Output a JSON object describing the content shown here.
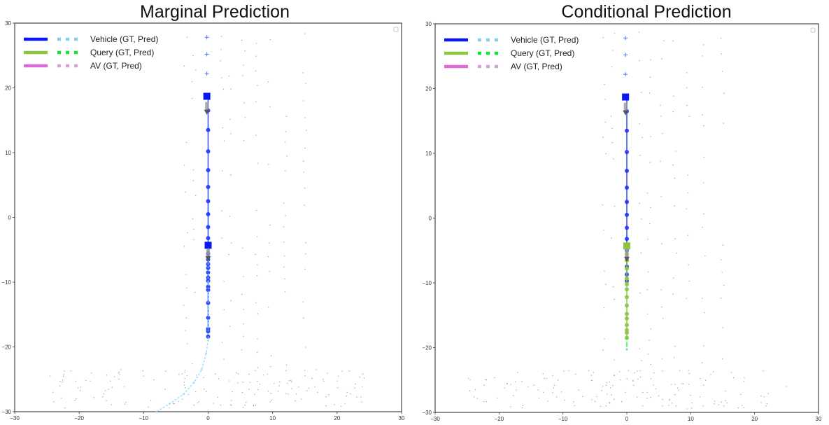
{
  "chart_data": [
    {
      "type": "line",
      "title": "Marginal Prediction",
      "xlim": [
        -30,
        30
      ],
      "ylim": [
        -30,
        30
      ],
      "xticks": [
        "−30",
        "−20",
        "−10",
        "0",
        "10",
        "20",
        "30"
      ],
      "yticks": [
        "30",
        "20",
        "10",
        "0",
        "−10",
        "−20",
        "−30"
      ],
      "legend": {
        "placement": "top-left",
        "entries": [
          {
            "label": "Vehicle (GT, Pred)",
            "gt_color": "#0a17f2",
            "pred_color": "#87ceeb"
          },
          {
            "label": "Query (GT, Pred)",
            "gt_color": "#8cc63f",
            "pred_color": "#10e82a"
          },
          {
            "label": "AV (GT, Pred)",
            "gt_color": "#d96ad8",
            "pred_color": "#d8a0d8"
          }
        ]
      },
      "series": [
        {
          "color": "#1a35ff",
          "x": [
            0,
            0,
            0,
            0,
            0,
            0,
            0,
            0,
            0,
            0,
            0,
            0,
            0,
            0,
            0,
            0,
            0,
            0,
            0,
            0,
            0,
            0,
            0,
            0,
            0
          ],
          "y": [
            18.7,
            16.5,
            13.5,
            10.2,
            7.3,
            4.7,
            2.5,
            0.5,
            -1.5,
            -3.2,
            -4.3,
            -5.6,
            -6.5,
            -7.2,
            -7.8,
            -8.5,
            -9.3,
            -9.8,
            -10.7,
            -11.2,
            -13.2,
            -15.5,
            -17.2,
            -17.6,
            -18.4
          ]
        },
        {
          "color": "#8ad6ff",
          "x": [
            0,
            0,
            0,
            0,
            0,
            -0.3,
            -1,
            -2.2,
            -3.8,
            -6,
            -8
          ],
          "y": [
            -4.3,
            -10,
            -14,
            -17,
            -19,
            -21,
            -23.5,
            -25.5,
            -27.3,
            -28.8,
            -30
          ]
        }
      ],
      "markers": [
        {
          "shape": "square",
          "color": "#0a17f2",
          "x": -0.2,
          "y": 18.7
        },
        {
          "shape": "square",
          "color": "#0a17f2",
          "x": 0,
          "y": -4.3
        },
        {
          "shape": "triangle",
          "color": "#555555",
          "x": -0.2,
          "y": 16.3
        },
        {
          "shape": "triangle",
          "color": "#555555",
          "x": 0,
          "y": -6.3
        },
        {
          "shape": "plus",
          "color": "#5577ff",
          "x": -0.2,
          "y": 27.8
        },
        {
          "shape": "plus",
          "color": "#5577ff",
          "x": -0.2,
          "y": 25.2
        },
        {
          "shape": "plus",
          "color": "#5577ff",
          "x": -0.2,
          "y": 22.2
        }
      ]
    },
    {
      "type": "line",
      "title": "Conditional Prediction",
      "xlim": [
        -30,
        30
      ],
      "ylim": [
        -30,
        30
      ],
      "xticks": [
        "−30",
        "−20",
        "−10",
        "0",
        "10",
        "20",
        "30"
      ],
      "yticks": [
        "30",
        "20",
        "10",
        "0",
        "−10",
        "−20",
        "−30"
      ],
      "legend": {
        "placement": "top-left",
        "entries": [
          {
            "label": "Vehicle (GT, Pred)",
            "gt_color": "#0a17f2",
            "pred_color": "#87ceeb"
          },
          {
            "label": "Query (GT, Pred)",
            "gt_color": "#8cc63f",
            "pred_color": "#10e82a"
          },
          {
            "label": "AV (GT, Pred)",
            "gt_color": "#d96ad8",
            "pred_color": "#d8a0d8"
          }
        ]
      },
      "series": [
        {
          "color": "#1a35ff",
          "x": [
            0,
            0,
            0,
            0,
            0,
            0,
            0,
            0,
            0,
            0,
            0,
            0,
            0,
            0,
            0
          ],
          "y": [
            18.7,
            16.5,
            13.5,
            10.2,
            7.3,
            4.7,
            2.5,
            0.5,
            -1.5,
            -3.2,
            -5,
            -6.5,
            -7.5,
            -8.7,
            -9.7
          ]
        },
        {
          "color": "#8cc63f",
          "x": [
            0,
            0,
            0,
            0,
            0,
            0,
            0,
            0,
            0,
            0,
            0,
            0,
            0,
            0,
            0
          ],
          "y": [
            -4.3,
            -5.6,
            -6.5,
            -7.8,
            -9.3,
            -10.2,
            -11,
            -12.2,
            -13.5,
            -14.8,
            -15.5,
            -16.5,
            -17.3,
            -17.7,
            -18.5
          ]
        },
        {
          "color": "#22ee44",
          "x": [
            0,
            0,
            0
          ],
          "y": [
            -18.5,
            -19.5,
            -20.3
          ]
        }
      ],
      "markers": [
        {
          "shape": "square",
          "color": "#0a17f2",
          "x": -0.2,
          "y": 18.7
        },
        {
          "shape": "square",
          "color": "#8cc63f",
          "x": 0,
          "y": -4.3
        },
        {
          "shape": "triangle",
          "color": "#555555",
          "x": -0.2,
          "y": 16.3
        },
        {
          "shape": "triangle",
          "color": "#555555",
          "x": 0,
          "y": -6.3
        },
        {
          "shape": "plus",
          "color": "#5577ff",
          "x": -0.2,
          "y": 27.8
        },
        {
          "shape": "plus",
          "color": "#5577ff",
          "x": -0.2,
          "y": 25.2
        },
        {
          "shape": "plus",
          "color": "#5577ff",
          "x": -0.2,
          "y": 22.2
        }
      ]
    }
  ]
}
